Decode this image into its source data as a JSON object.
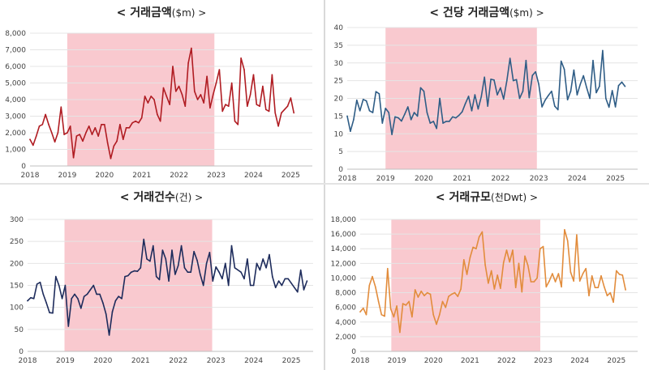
{
  "chart_data": [
    {
      "type": "line",
      "title": "< 거래금액($m) >",
      "title_main": "< 거래금액",
      "title_unit": "($m) >",
      "color": "#b01c22",
      "highlight_color": "#f9c9cf",
      "highlight_range": [
        2019.0,
        2022.95
      ],
      "xlim": [
        2018.0,
        2025.58
      ],
      "ylim": [
        0,
        8000
      ],
      "yticks": [
        "0",
        "1,000",
        "2,000",
        "3,000",
        "4,000",
        "5,000",
        "6,000",
        "7,000",
        "8,000"
      ],
      "ytick_values": [
        0,
        1000,
        2000,
        3000,
        4000,
        5000,
        6000,
        7000,
        8000
      ],
      "xticks": [
        "2018",
        "2019",
        "2020",
        "2021",
        "2022",
        "2023",
        "2024",
        "2025"
      ],
      "xtick_values": [
        2018,
        2019,
        2020,
        2021,
        2022,
        2023,
        2024,
        2025
      ],
      "x_start": 2018.0,
      "x_step": 0.08333,
      "values": [
        1600,
        1250,
        1800,
        2400,
        2500,
        3100,
        2500,
        2000,
        1450,
        2000,
        3550,
        1900,
        2000,
        2400,
        500,
        1800,
        1900,
        1500,
        2000,
        2400,
        1900,
        2300,
        1800,
        2500,
        2500,
        1400,
        450,
        1200,
        1500,
        2500,
        1600,
        2300,
        2300,
        2600,
        2700,
        2600,
        2900,
        4200,
        3800,
        4200,
        4000,
        3100,
        2700,
        4700,
        4200,
        3700,
        6000,
        4500,
        4800,
        4300,
        3600,
        6200,
        7100,
        4500,
        4000,
        4300,
        3800,
        5400,
        3500,
        4300,
        5000,
        5800,
        3300,
        3700,
        3600,
        5000,
        2700,
        2500,
        6500,
        5800,
        3600,
        4300,
        5500,
        3700,
        3600,
        4800,
        3400,
        3300,
        5500,
        3200,
        2400,
        3200,
        3400,
        3600,
        4100,
        3200
      ]
    },
    {
      "type": "line",
      "title": "< 건당 거래금액($m) >",
      "title_main": "< 건당 거래금액",
      "title_unit": "($m) >",
      "color": "#2f5d86",
      "highlight_color": "#f9c9cf",
      "highlight_range": [
        2019.0,
        2022.95
      ],
      "xlim": [
        2018.0,
        2025.58
      ],
      "ylim": [
        0,
        40
      ],
      "yticks": [
        "0",
        "5",
        "10",
        "15",
        "20",
        "25",
        "30",
        "35",
        "40"
      ],
      "ytick_values": [
        0,
        5,
        10,
        15,
        20,
        25,
        30,
        35,
        40
      ],
      "xticks": [
        "2018",
        "2019",
        "2020",
        "2021",
        "2022",
        "2023",
        "2024",
        "2025"
      ],
      "xtick_values": [
        2018,
        2019,
        2020,
        2021,
        2022,
        2023,
        2024,
        2025
      ],
      "x_start": 2018.0,
      "x_step": 0.08333,
      "values": [
        15.0,
        10.7,
        14.0,
        19.5,
        16.5,
        19.7,
        19.3,
        16.5,
        16.0,
        21.9,
        21.3,
        13.0,
        17.2,
        16.0,
        9.8,
        14.8,
        14.5,
        13.6,
        15.5,
        17.6,
        14.0,
        16.0,
        15.0,
        23.0,
        22.0,
        16.0,
        13.0,
        13.5,
        11.5,
        20.0,
        13.0,
        13.5,
        13.5,
        14.8,
        14.5,
        15.2,
        16.2,
        18.5,
        20.6,
        16.5,
        21.0,
        17.0,
        20.5,
        26.0,
        17.8,
        25.4,
        25.2,
        21.0,
        23.0,
        19.8,
        25.0,
        31.3,
        25.0,
        25.3,
        20.0,
        22.0,
        30.7,
        20.2,
        26.5,
        27.5,
        24.0,
        17.6,
        19.5,
        20.8,
        22.0,
        17.8,
        16.8,
        30.5,
        28.2,
        19.6,
        22.0,
        28.0,
        21.0,
        24.0,
        26.4,
        23.0,
        20.0,
        30.7,
        21.6,
        23.4,
        33.5,
        20.0,
        17.5,
        22.2,
        17.6,
        23.6,
        24.6,
        23.4
      ]
    },
    {
      "type": "line",
      "title": "< 거래건수(건) >",
      "title_main": "< 거래건수",
      "title_unit": "(건) >",
      "color": "#1e2c5c",
      "highlight_color": "#f9c9cf",
      "highlight_range": [
        2018.98,
        2022.9
      ],
      "xlim": [
        2018.0,
        2025.58
      ],
      "ylim": [
        0,
        300
      ],
      "yticks": [
        "0",
        "50",
        "100",
        "150",
        "200",
        "250",
        "300"
      ],
      "ytick_values": [
        0,
        50,
        100,
        150,
        200,
        250,
        300
      ],
      "xticks": [
        "2018",
        "2019",
        "2020",
        "2021",
        "2022",
        "2023",
        "2024",
        "2025"
      ],
      "xtick_values": [
        2018,
        2019,
        2020,
        2021,
        2022,
        2023,
        2024,
        2025
      ],
      "x_start": 2018.0,
      "x_step": 0.08333,
      "values": [
        115,
        122,
        120,
        153,
        157,
        130,
        110,
        88,
        87,
        170,
        150,
        120,
        150,
        57,
        120,
        130,
        120,
        98,
        125,
        130,
        140,
        150,
        130,
        130,
        110,
        85,
        37,
        90,
        115,
        125,
        120,
        170,
        172,
        180,
        183,
        182,
        190,
        255,
        210,
        205,
        240,
        170,
        163,
        230,
        210,
        160,
        230,
        175,
        195,
        240,
        190,
        180,
        180,
        227,
        207,
        175,
        150,
        200,
        225,
        160,
        192,
        180,
        165,
        200,
        150,
        240,
        190,
        185,
        180,
        165,
        210,
        150,
        150,
        200,
        185,
        210,
        190,
        220,
        170,
        145,
        160,
        150,
        165,
        165,
        155,
        145,
        135,
        185,
        140,
        160
      ]
    },
    {
      "type": "line",
      "title": "< 거래규모(천Dwt) >",
      "title_main": "< 거래규모",
      "title_unit": "(천Dwt) >",
      "color": "#e28c3c",
      "highlight_color": "#f9c9cf",
      "highlight_range": [
        2018.85,
        2022.92
      ],
      "xlim": [
        2018.0,
        2025.58
      ],
      "ylim": [
        0,
        18000
      ],
      "yticks": [
        "0",
        "2,000",
        "4,000",
        "6,000",
        "8,000",
        "10,000",
        "12,000",
        "14,000",
        "16,000",
        "18,000"
      ],
      "ytick_values": [
        0,
        2000,
        4000,
        6000,
        8000,
        10000,
        12000,
        14000,
        16000,
        18000
      ],
      "xticks": [
        "2018",
        "2019",
        "2020",
        "2021",
        "2022",
        "2023",
        "2024",
        "2025"
      ],
      "xtick_values": [
        2018,
        2019,
        2020,
        2021,
        2022,
        2023,
        2024,
        2025
      ],
      "x_start": 2018.0,
      "x_step": 0.08333,
      "values": [
        5400,
        5900,
        5000,
        9000,
        10200,
        8800,
        6800,
        5000,
        4800,
        11300,
        5800,
        4700,
        6200,
        2600,
        6500,
        6300,
        6800,
        4700,
        8400,
        7400,
        8200,
        7600,
        8000,
        7800,
        5000,
        3700,
        5000,
        6800,
        6000,
        7500,
        7800,
        8000,
        7500,
        8500,
        12500,
        10500,
        12800,
        14200,
        14000,
        15600,
        16300,
        11800,
        9300,
        11000,
        8500,
        10400,
        8600,
        12100,
        13800,
        12200,
        13800,
        8700,
        12000,
        8100,
        13000,
        11700,
        9500,
        9500,
        10000,
        14000,
        14300,
        8800,
        9600,
        10600,
        9500,
        10600,
        8800,
        16600,
        15100,
        10800,
        9600,
        15900,
        9600,
        10600,
        11300,
        7600,
        10300,
        8700,
        8700,
        10300,
        8800,
        7600,
        8000,
        6700,
        11000,
        10500,
        10400,
        8400
      ]
    }
  ]
}
